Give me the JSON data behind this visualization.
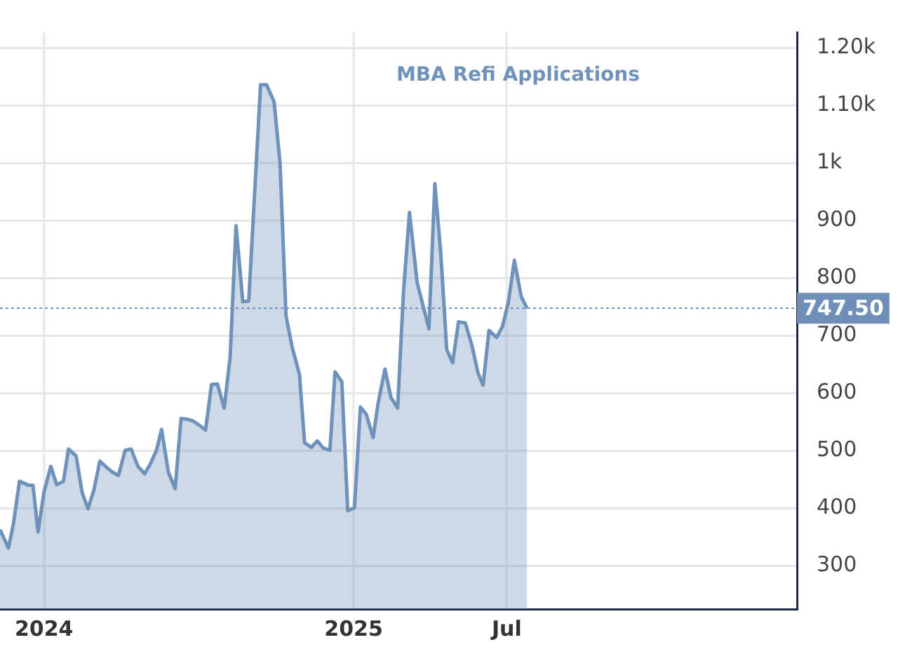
{
  "chart_data": {
    "type": "area",
    "title": "MBA Refi Applications",
    "xlim": [
      "2023-11-10",
      "2026-06-09"
    ],
    "xticks": [
      {
        "value": "2024-01-01",
        "label": "2024"
      },
      {
        "value": "2025-01-01",
        "label": "2025"
      },
      {
        "value": "2025-07-01",
        "label": "Jul"
      }
    ],
    "ylim": [
      225,
      1227
    ],
    "yticks": [
      300,
      400,
      500,
      600,
      700,
      800,
      900,
      {
        "value": 1000,
        "label": "1k"
      },
      {
        "value": 1100,
        "label": "1.10k"
      },
      {
        "value": 1200,
        "label": "1.20k"
      }
    ],
    "grid": true,
    "legend": false,
    "marker": "none",
    "line_style": "solid",
    "ref_lines": [
      {
        "axis": "y",
        "value": 747.5,
        "label": "747.50",
        "color": "#6f8fb8",
        "line_style": "dotted"
      }
    ],
    "series": [
      {
        "color": "#6f92bb",
        "x": [
          "2023-11-10",
          "2023-11-20",
          "2023-11-26",
          "2023-12-03",
          "2023-12-14",
          "2023-12-19",
          "2023-12-25",
          "2024-01-01",
          "2024-01-09",
          "2024-01-16",
          "2024-01-24",
          "2024-01-30",
          "2024-02-08",
          "2024-02-15",
          "2024-02-22",
          "2024-02-29",
          "2024-03-07",
          "2024-03-15",
          "2024-03-22",
          "2024-03-29",
          "2024-04-06",
          "2024-04-13",
          "2024-04-21",
          "2024-04-29",
          "2024-05-06",
          "2024-05-13",
          "2024-05-19",
          "2024-05-27",
          "2024-06-04",
          "2024-06-11",
          "2024-06-18",
          "2024-06-25",
          "2024-07-02",
          "2024-07-10",
          "2024-07-17",
          "2024-07-24",
          "2024-08-01",
          "2024-08-08",
          "2024-08-15",
          "2024-08-23",
          "2024-08-30",
          "2024-09-13",
          "2024-09-20",
          "2024-09-29",
          "2024-10-06",
          "2024-10-13",
          "2024-10-20",
          "2024-10-29",
          "2024-11-04",
          "2024-11-12",
          "2024-11-19",
          "2024-11-26",
          "2024-12-04",
          "2024-12-10",
          "2024-12-18",
          "2024-12-25",
          "2025-01-02",
          "2025-01-09",
          "2025-01-16",
          "2025-01-24",
          "2025-01-30",
          "2025-02-07",
          "2025-02-14",
          "2025-02-22",
          "2025-03-01",
          "2025-03-08",
          "2025-03-17",
          "2025-03-24",
          "2025-03-31",
          "2025-04-07",
          "2025-04-14",
          "2025-04-21",
          "2025-04-28",
          "2025-05-05",
          "2025-05-13",
          "2025-05-21",
          "2025-05-28",
          "2025-06-03",
          "2025-06-10",
          "2025-06-19",
          "2025-06-26",
          "2025-07-03",
          "2025-07-10",
          "2025-07-18",
          "2025-07-25"
        ],
        "values": [
          363,
          331,
          374,
          447,
          440,
          440,
          359,
          428,
          473,
          441,
          447,
          503,
          491,
          428,
          399,
          432,
          482,
          471,
          463,
          457,
          501,
          503,
          473,
          460,
          478,
          501,
          537,
          463,
          434,
          556,
          555,
          552,
          545,
          536,
          615,
          616,
          574,
          662,
          891,
          759,
          760,
          1136,
          1136,
          1106,
          1000,
          735,
          682,
          632,
          514,
          506,
          517,
          505,
          501,
          637,
          620,
          396,
          401,
          576,
          563,
          523,
          583,
          642,
          593,
          574,
          778,
          914,
          793,
          752,
          712,
          964,
          843,
          676,
          653,
          724,
          722,
          682,
          635,
          614,
          709,
          697,
          716,
          759,
          831,
          768,
          747.5
        ]
      }
    ]
  }
}
